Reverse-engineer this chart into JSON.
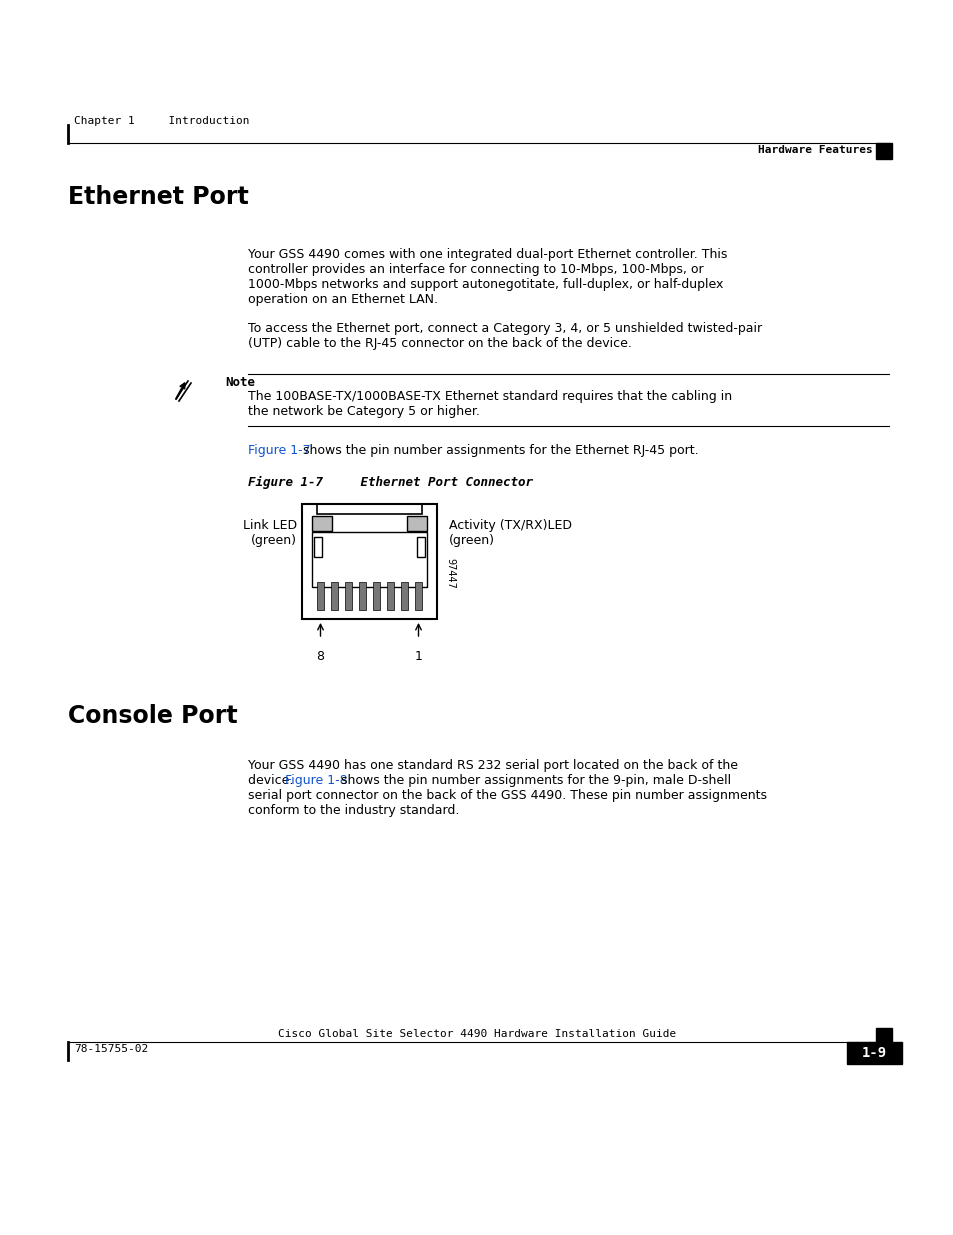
{
  "bg_color": "#ffffff",
  "page_width": 9.54,
  "page_height": 12.35,
  "header_left": "Chapter 1     Introduction",
  "header_right": "Hardware Features",
  "footer_left": "78-15755-02",
  "footer_right": "1-9",
  "footer_center": "Cisco Global Site Selector 4490 Hardware Installation Guide",
  "section1_title": "Ethernet Port",
  "s1p1l1": "Your GSS 4490 comes with one integrated dual-port Ethernet controller. This",
  "s1p1l2": "controller provides an interface for connecting to 10-Mbps, 100-Mbps, or",
  "s1p1l3": "1000-Mbps networks and support autonegotitate, full-duplex, or half-duplex",
  "s1p1l4": "operation on an Ethernet LAN.",
  "s1p2l1": "To access the Ethernet port, connect a Category 3, 4, or 5 unshielded twisted-pair",
  "s1p2l2": "(UTP) cable to the RJ-45 connector on the back of the device.",
  "note_label": "Note",
  "note_l1": "The 100BASE-TX/1000BASE-TX Ethernet standard requires that the cabling in",
  "note_l2": "the network be Category 5 or higher.",
  "fig_ref_link": "Figure 1-7",
  "fig_ref_rest": " shows the pin number assignments for the Ethernet RJ-45 port.",
  "fig1_caption": "Figure 1-7     Ethernet Port Connector",
  "fig1_lbl_l1": "Link LED",
  "fig1_lbl_l2": "(green)",
  "fig1_lbl_r1": "Activity (TX/RX)LED",
  "fig1_lbl_r2": "(green)",
  "fig1_pin8": "8",
  "fig1_pin1": "1",
  "fig1_side": "97447",
  "section2_title": "Console Port",
  "s2p1l1": "Your GSS 4490 has one standard RS 232 serial port located on the back of the",
  "s2p1l2a": "device. ",
  "s2p1_link": "Figure 1-8",
  "s2p1l2b": " shows the pin number assignments for the 9-pin, male D-shell",
  "s2p1l3": "serial port connector on the back of the GSS 4490. These pin number assignments",
  "s2p1l4": "conform to the industry standard.",
  "link_color": "#1155CC"
}
